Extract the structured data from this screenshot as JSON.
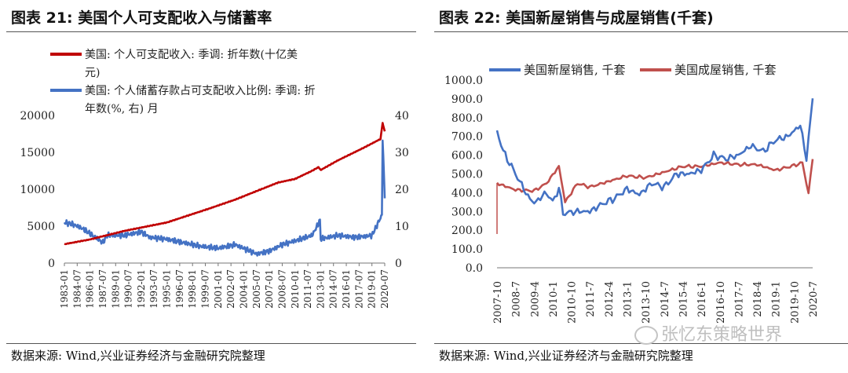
{
  "watermark": "张忆东策略世界",
  "charts": [
    {
      "title": "图表 21:  美国个人可支配收入与储蓄率",
      "source": "数据来源:  Wind,兴业证券经济与金融研究院整理"
    },
    {
      "title": "图表 22:  美国新屋销售与成屋销售(千套)",
      "source": "数据来源:  Wind,兴业证券经济与金融研究院整理"
    }
  ],
  "chart_data": [
    {
      "type": "line",
      "title": "图表 21:  美国个人可支配收入与储蓄率",
      "legend_position": "top-left",
      "x_labels": [
        "1983-01",
        "1984-07",
        "1986-01",
        "1987-07",
        "1989-01",
        "1990-07",
        "1992-01",
        "1993-07",
        "1995-01",
        "1996-07",
        "1998-01",
        "1999-07",
        "2001-01",
        "2002-07",
        "2004-01",
        "2005-07",
        "2007-01",
        "2008-07",
        "2010-01",
        "2011-07",
        "2013-01",
        "2014-07",
        "2016-01",
        "2017-07",
        "2019-01",
        "2020-07"
      ],
      "y_left": {
        "ticks": [
          "0",
          "5000",
          "10000",
          "15000",
          "20000"
        ],
        "range": [
          0,
          20000
        ]
      },
      "y_right": {
        "ticks": [
          "0",
          "10",
          "20",
          "30",
          "40"
        ],
        "range": [
          0,
          40
        ]
      },
      "series": [
        {
          "name_lines": [
            "美国: 个人可支配收入: 季调: 折年数(十亿美",
            "元)"
          ],
          "color": "#c00000",
          "axis": "left",
          "points": [
            [
              "1983-01",
              2560
            ],
            [
              "1986-01",
              3200
            ],
            [
              "1990-01",
              4350
            ],
            [
              "1995-01",
              5500
            ],
            [
              "2000-01",
              7400
            ],
            [
              "2003-01",
              8600
            ],
            [
              "2008-01",
              10900
            ],
            [
              "2010-01",
              11400
            ],
            [
              "2012-01",
              12500
            ],
            [
              "2012-10",
              13000
            ],
            [
              "2013-01",
              12600
            ],
            [
              "2015-01",
              13900
            ],
            [
              "2018-01",
              15600
            ],
            [
              "2020-01",
              16800
            ],
            [
              "2020-04",
              19000
            ],
            [
              "2020-07",
              17800
            ]
          ]
        },
        {
          "name_lines": [
            "美国: 个人储蓄存款占可支配收入比例: 季调: 折",
            "年数(%, 右) 月"
          ],
          "color": "#4472c4",
          "axis": "right",
          "points": [
            [
              "1983-01",
              11.0
            ],
            [
              "1984-01",
              10.5
            ],
            [
              "1985-01",
              9.5
            ],
            [
              "1986-01",
              8.0
            ],
            [
              "1987-07",
              5.5
            ],
            [
              "1988-01",
              7.5
            ],
            [
              "1990-01",
              7.5
            ],
            [
              "1992-01",
              8.5
            ],
            [
              "1993-01",
              7.0
            ],
            [
              "1995-01",
              6.5
            ],
            [
              "1997-01",
              5.5
            ],
            [
              "1999-01",
              4.5
            ],
            [
              "2001-01",
              4.0
            ],
            [
              "2003-01",
              5.0
            ],
            [
              "2005-07",
              2.5
            ],
            [
              "2007-01",
              3.3
            ],
            [
              "2008-07",
              5.0
            ],
            [
              "2010-01",
              6.0
            ],
            [
              "2012-01",
              7.5
            ],
            [
              "2012-12",
              11.5
            ],
            [
              "2013-01",
              6.5
            ],
            [
              "2015-01",
              7.5
            ],
            [
              "2017-01",
              7.0
            ],
            [
              "2019-01",
              7.5
            ],
            [
              "2020-03",
              13.0
            ],
            [
              "2020-04",
              33.7
            ],
            [
              "2020-07",
              18.0
            ]
          ]
        }
      ]
    },
    {
      "type": "line",
      "title": "图表 22:  美国新屋销售与成屋销售(千套)",
      "legend_position": "top",
      "x_labels": [
        "2007-10",
        "2008-7",
        "2009-4",
        "2010-1",
        "2010-10",
        "2011-7",
        "2012-4",
        "2013-1",
        "2013-10",
        "2014-7",
        "2015-4",
        "2016-1",
        "2016-10",
        "2017-7",
        "2018-4",
        "2019-1",
        "2019-10",
        "2020-7"
      ],
      "y_axis": {
        "ticks": [
          "0.0",
          "100.0",
          "200.0",
          "300.0",
          "400.0",
          "500.0",
          "600.0",
          "700.0",
          "800.0",
          "900.0",
          "1000.0"
        ],
        "range": [
          0,
          1000
        ]
      },
      "series": [
        {
          "name": "美国新屋销售, 千套",
          "color": "#4472c4",
          "points": [
            [
              "2007-10",
              730
            ],
            [
              "2008-01",
              620
            ],
            [
              "2008-07",
              500
            ],
            [
              "2009-01",
              380
            ],
            [
              "2009-04",
              345
            ],
            [
              "2009-10",
              400
            ],
            [
              "2010-01",
              350
            ],
            [
              "2010-04",
              425
            ],
            [
              "2010-06",
              290
            ],
            [
              "2011-01",
              300
            ],
            [
              "2011-07",
              300
            ],
            [
              "2012-01",
              340
            ],
            [
              "2012-07",
              370
            ],
            [
              "2013-01",
              420
            ],
            [
              "2013-07",
              390
            ],
            [
              "2014-01",
              450
            ],
            [
              "2014-07",
              430
            ],
            [
              "2015-01",
              500
            ],
            [
              "2015-07",
              500
            ],
            [
              "2016-01",
              520
            ],
            [
              "2016-07",
              600
            ],
            [
              "2017-01",
              580
            ],
            [
              "2017-07",
              600
            ],
            [
              "2018-01",
              650
            ],
            [
              "2018-07",
              620
            ],
            [
              "2019-01",
              680
            ],
            [
              "2019-07",
              700
            ],
            [
              "2020-01",
              760
            ],
            [
              "2020-04",
              580
            ],
            [
              "2020-07",
              900
            ]
          ]
        },
        {
          "name": "美国成屋销售, 千套",
          "color": "#c0504d",
          "points": [
            [
              "2007-10",
              450
            ],
            [
              "2008-07",
              415
            ],
            [
              "2009-04",
              410
            ],
            [
              "2009-10",
              450
            ],
            [
              "2010-04",
              540
            ],
            [
              "2010-07",
              350
            ],
            [
              "2011-01",
              450
            ],
            [
              "2011-07",
              430
            ],
            [
              "2012-04",
              460
            ],
            [
              "2013-01",
              490
            ],
            [
              "2013-10",
              480
            ],
            [
              "2014-07",
              510
            ],
            [
              "2015-04",
              540
            ],
            [
              "2016-01",
              540
            ],
            [
              "2016-10",
              560
            ],
            [
              "2017-07",
              550
            ],
            [
              "2018-04",
              550
            ],
            [
              "2019-01",
              520
            ],
            [
              "2019-10",
              545
            ],
            [
              "2020-02",
              560
            ],
            [
              "2020-05",
              395
            ],
            [
              "2020-07",
              585
            ]
          ]
        }
      ]
    }
  ]
}
